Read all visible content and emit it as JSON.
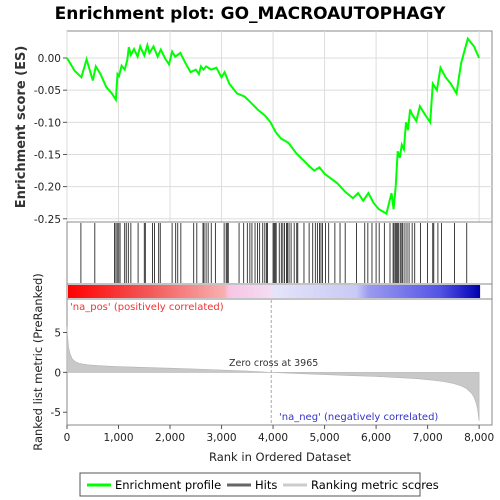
{
  "chart_data": {
    "type": "line",
    "title": "Enrichment plot: GO_MACROAUTOPHAGY",
    "es_panel": {
      "ylabel": "Enrichment score (ES)",
      "ylim": [
        -0.255,
        0.042
      ],
      "yticks": [
        -0.25,
        -0.2,
        -0.15,
        -0.1,
        -0.05,
        0.0
      ],
      "ytick_labels": [
        "-0.25",
        "-0.20",
        "-0.15",
        "-0.10",
        "-0.05",
        "0.00"
      ],
      "grid": true,
      "series": [
        {
          "name": "Enrichment profile",
          "color": "#00ff00",
          "x": [
            0,
            150,
            280,
            380,
            500,
            560,
            650,
            760,
            870,
            950,
            980,
            1010,
            1060,
            1120,
            1170,
            1200,
            1240,
            1300,
            1370,
            1420,
            1500,
            1560,
            1600,
            1680,
            1760,
            1820,
            1900,
            1980,
            2040,
            2100,
            2200,
            2300,
            2400,
            2500,
            2560,
            2600,
            2650,
            2700,
            2800,
            2900,
            3000,
            3060,
            3150,
            3300,
            3450,
            3550,
            3700,
            3850,
            3950,
            4050,
            4150,
            4300,
            4450,
            4550,
            4700,
            4800,
            4900,
            5000,
            5100,
            5250,
            5400,
            5550,
            5650,
            5750,
            5850,
            5950,
            6050,
            6200,
            6300,
            6340,
            6380,
            6420,
            6460,
            6500,
            6540,
            6580,
            6620,
            6660,
            6700,
            6780,
            6850,
            6950,
            7050,
            7100,
            7180,
            7250,
            7350,
            7450,
            7560,
            7650,
            7780,
            7900,
            8000
          ],
          "y": [
            0.0,
            -0.02,
            -0.03,
            -0.002,
            -0.035,
            -0.013,
            -0.025,
            -0.045,
            -0.055,
            -0.065,
            -0.025,
            -0.028,
            -0.012,
            -0.018,
            -0.003,
            0.017,
            0.005,
            0.014,
            0.002,
            0.018,
            0.004,
            0.02,
            0.008,
            0.018,
            0.002,
            0.013,
            0.0,
            -0.01,
            0.01,
            0.002,
            0.008,
            -0.008,
            -0.022,
            -0.018,
            -0.025,
            -0.013,
            -0.018,
            -0.013,
            -0.018,
            -0.015,
            -0.03,
            -0.022,
            -0.04,
            -0.055,
            -0.06,
            -0.068,
            -0.08,
            -0.09,
            -0.1,
            -0.115,
            -0.125,
            -0.132,
            -0.148,
            -0.156,
            -0.168,
            -0.175,
            -0.17,
            -0.18,
            -0.186,
            -0.195,
            -0.208,
            -0.218,
            -0.21,
            -0.222,
            -0.21,
            -0.225,
            -0.235,
            -0.242,
            -0.21,
            -0.235,
            -0.2,
            -0.145,
            -0.155,
            -0.135,
            -0.142,
            -0.1,
            -0.112,
            -0.08,
            -0.088,
            -0.098,
            -0.075,
            -0.088,
            -0.1,
            -0.04,
            -0.05,
            -0.015,
            -0.03,
            -0.04,
            -0.055,
            -0.008,
            0.03,
            0.018,
            0.0
          ]
        }
      ]
    },
    "hits": {
      "label": "Hits",
      "positions": [
        270,
        540,
        920,
        950,
        975,
        1005,
        1030,
        1120,
        1150,
        1190,
        1240,
        1380,
        1500,
        1520,
        1660,
        1700,
        1780,
        1810,
        2040,
        2110,
        2150,
        2210,
        2460,
        2520,
        2640,
        2660,
        2700,
        2740,
        2800,
        2880,
        3050,
        3090,
        3110,
        3130,
        3340,
        3430,
        3500,
        3550,
        3590,
        3650,
        3700,
        3740,
        3800,
        3840,
        3870,
        3890,
        4000,
        4020,
        4040,
        4060,
        4120,
        4160,
        4190,
        4220,
        4260,
        4280,
        4310,
        4350,
        4410,
        4460,
        4480,
        4600,
        4700,
        4770,
        4820,
        4860,
        4900,
        4930,
        4960,
        5020,
        5080,
        5200,
        5300,
        5400,
        5620,
        5780,
        5840,
        5920,
        6000,
        6060,
        6160,
        6270,
        6330,
        6350,
        6380,
        6400,
        6420,
        6440,
        6470,
        6500,
        6520,
        6560,
        6600,
        6640,
        6700,
        6750,
        6860,
        7000,
        7100,
        7120,
        7200,
        7270,
        7520,
        7760
      ]
    },
    "ranking_panel": {
      "ylabel": "Ranked list metric (PreRanked)",
      "ylim": [
        -6.6,
        9.2
      ],
      "yticks": [
        -5,
        0,
        5
      ],
      "ytick_labels": [
        "-5",
        "0",
        "5"
      ],
      "metric_curve": {
        "name": "Ranking metric scores",
        "color": "#cccccc",
        "x": [
          0,
          10,
          30,
          60,
          100,
          160,
          250,
          400,
          600,
          900,
          1200,
          1500,
          2000,
          2500,
          3000,
          3500,
          3965,
          4500,
          5000,
          5500,
          6000,
          6500,
          6800,
          7100,
          7300,
          7500,
          7650,
          7750,
          7850,
          7900,
          7940,
          7970,
          7990,
          8000
        ],
        "y": [
          5.8,
          4.6,
          3.2,
          2.3,
          1.7,
          1.35,
          1.1,
          0.95,
          0.85,
          0.75,
          0.68,
          0.62,
          0.52,
          0.42,
          0.3,
          0.16,
          0.0,
          -0.15,
          -0.28,
          -0.4,
          -0.52,
          -0.68,
          -0.8,
          -0.98,
          -1.15,
          -1.4,
          -1.7,
          -2.0,
          -2.6,
          -3.1,
          -3.8,
          -4.6,
          -5.6,
          -6.1
        ]
      },
      "zero_cross_label": "Zero cross at 3965",
      "zero_cross": 3965,
      "pos_label": "'na_pos' (positively correlated)",
      "neg_label": "'na_neg' (negatively correlated)"
    },
    "xaxis": {
      "label": "Rank in Ordered Dataset",
      "xlim": [
        0,
        8250
      ],
      "ticks": [
        0,
        1000,
        2000,
        3000,
        4000,
        5000,
        6000,
        7000,
        8000
      ],
      "tick_labels": [
        "0",
        "1,000",
        "2,000",
        "3,000",
        "4,000",
        "5,000",
        "6,000",
        "7,000",
        "8,000"
      ],
      "dataset_size": 8000
    },
    "legend": {
      "placement": "bottom",
      "entries": [
        {
          "label": "Enrichment profile",
          "color": "#00ff00"
        },
        {
          "label": "Hits",
          "color": "#666666"
        },
        {
          "label": "Ranking metric scores",
          "color": "#cccccc"
        }
      ]
    }
  }
}
